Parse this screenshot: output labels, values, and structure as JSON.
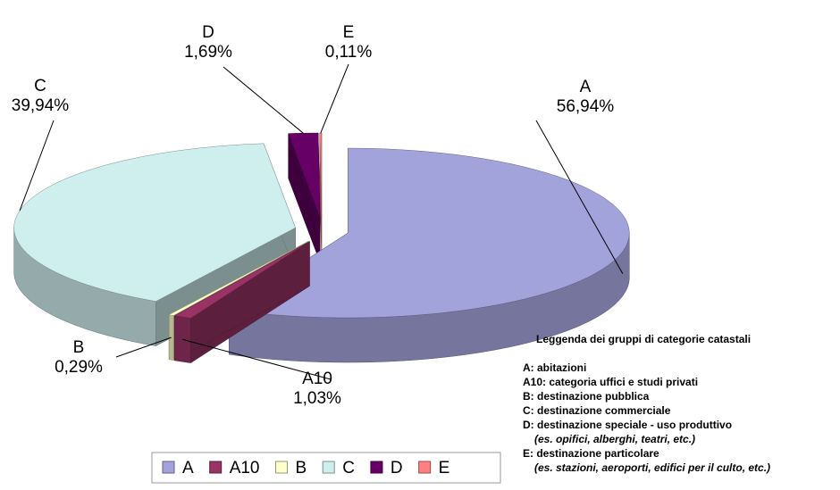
{
  "chart_data": {
    "type": "pie3d",
    "categories": [
      "A",
      "A10",
      "B",
      "C",
      "D",
      "E"
    ],
    "values": [
      56.94,
      1.03,
      0.29,
      39.94,
      1.69,
      0.11
    ],
    "value_labels": [
      "56,94%",
      "1,03%",
      "0,29%",
      "39,94%",
      "1,69%",
      "0,11%"
    ],
    "colors": [
      "#a3a3dc",
      "#993366",
      "#ffffcc",
      "#cfeeee",
      "#660066",
      "#ff8080"
    ],
    "legend": "bottom",
    "description": {
      "title": "Leggenda dei gruppi di categorie catastali",
      "items": [
        {
          "label": "A: abitazioni"
        },
        {
          "label": "A10: categoria uffici e studi privati"
        },
        {
          "label": "B: destinazione pubblica"
        },
        {
          "label": "C: destinazione commerciale"
        },
        {
          "label": "D: destinazione speciale - uso produttivo",
          "note": "(es. opifici, alberghi, teatri, etc.)"
        },
        {
          "label": "E: destinazione particolare",
          "note": "(es. stazioni, aeroporti, edifici per il culto, etc.)"
        }
      ]
    }
  }
}
